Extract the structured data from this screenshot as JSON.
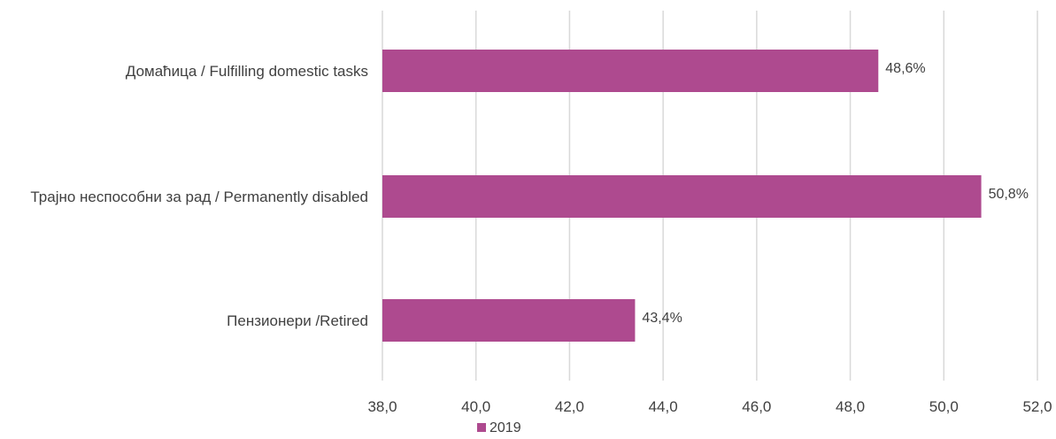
{
  "chart_data": {
    "type": "bar",
    "orientation": "horizontal",
    "categories": [
      "Домаћица / Fulfilling domestic tasks",
      "Трајно неспособни за рад / Permanently disabled",
      "Пензионери /Retired"
    ],
    "series": [
      {
        "name": "2019",
        "values": [
          48.6,
          50.8,
          43.4
        ],
        "data_labels": [
          "48,6%",
          "50,8%",
          "43,4%"
        ],
        "color": "#AE4A8F"
      }
    ],
    "x_ticks": [
      "38,0",
      "40,0",
      "42,0",
      "44,0",
      "46,0",
      "48,0",
      "50,0",
      "52,0"
    ],
    "xlim": [
      38,
      52
    ],
    "grid": true,
    "legend_position": "bottom"
  }
}
